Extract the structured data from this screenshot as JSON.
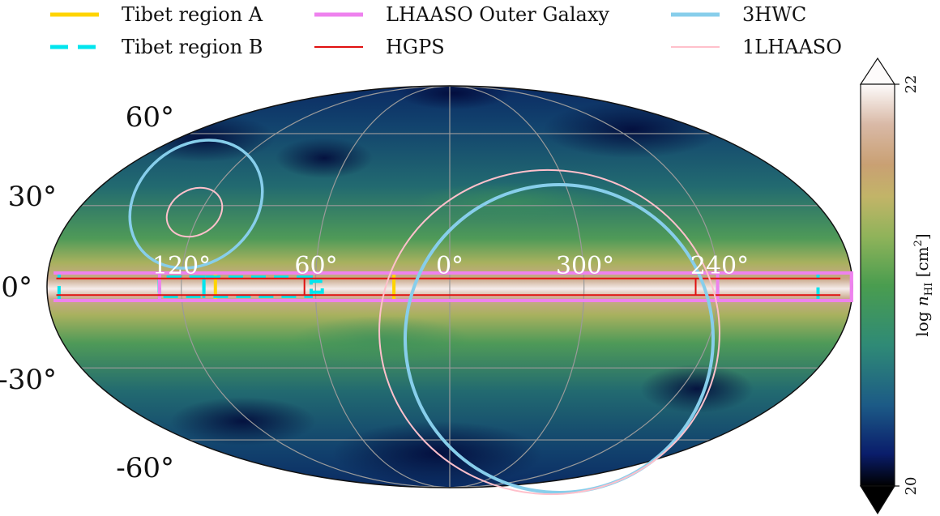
{
  "chart_data": {
    "type": "heatmap",
    "projection": "mollweide",
    "coordinate_system": "galactic",
    "legend": {
      "placement": "top",
      "entries": [
        {
          "id": "tibet_a",
          "label": "Tibet region A",
          "color": "#FFD400",
          "style": "solid"
        },
        {
          "id": "tibet_b",
          "label": "Tibet region B",
          "color": "#00E5EE",
          "style": "dashed"
        },
        {
          "id": "lhaaso_outer",
          "label": "LHAASO Outer Galaxy",
          "color": "#EE82EE",
          "style": "solid"
        },
        {
          "id": "hgps",
          "label": "HGPS",
          "color": "#E01010",
          "style": "solid"
        },
        {
          "id": "hwc3",
          "label": "3HWC",
          "color": "#87CEEB",
          "style": "solid"
        },
        {
          "id": "lhaaso1",
          "label": "1LHAASO",
          "color": "#FFC0CB",
          "style": "solid"
        }
      ]
    },
    "lat_ticks": [
      {
        "value": 60,
        "label": "60°"
      },
      {
        "value": 30,
        "label": "30°"
      },
      {
        "value": 0,
        "label": "0°"
      },
      {
        "value": -30,
        "label": "-30°"
      },
      {
        "value": -60,
        "label": "-60°"
      }
    ],
    "lon_ticks": [
      {
        "value": 120,
        "label": "120°"
      },
      {
        "value": 60,
        "label": "60°"
      },
      {
        "value": 0,
        "label": "0°"
      },
      {
        "value": 300,
        "label": "300°"
      },
      {
        "value": 240,
        "label": "240°"
      }
    ],
    "grid": true,
    "lon_range": [
      180,
      -180
    ],
    "lat_range": [
      -90,
      90
    ],
    "colorbar": {
      "label": "log n_HI [cm²]",
      "label_main": "log ",
      "label_n": "n",
      "label_sub": "HI",
      "label_unit": " [cm",
      "label_sup": "2",
      "label_end": "]",
      "min": 20,
      "max": 22,
      "tick_min": "20",
      "tick_max": "22",
      "extend": "both",
      "colormap": "gist_earth"
    },
    "regions": [
      {
        "id": "tibet_a",
        "l": [
          25,
          105
        ],
        "b": [
          -5,
          5
        ]
      },
      {
        "id": "tibet_b_1",
        "l": [
          57,
          62
        ],
        "b": [
          -2,
          2
        ]
      },
      {
        "id": "tibet_b_2",
        "l": [
          62,
          110
        ],
        "b": [
          -3.5,
          3.5
        ]
      },
      {
        "id": "tibet_b_3",
        "l": [
          110,
          130
        ],
        "b": [
          -3.5,
          3.5
        ]
      },
      {
        "id": "tibet_b_4",
        "l": [
          130,
          175
        ],
        "b": [
          -5,
          5
        ]
      },
      {
        "id": "tibet_b_5",
        "l": [
          195,
          240
        ],
        "b": [
          -5,
          5
        ]
      },
      {
        "id": "lhaaso_outer_1",
        "l": [
          130,
          180
        ],
        "b": [
          -5,
          5
        ]
      },
      {
        "id": "lhaaso_outer_2",
        "l": [
          180,
          240
        ],
        "b": [
          -5,
          5
        ]
      },
      {
        "id": "hgps",
        "l": [
          65,
          250
        ],
        "b": [
          -3,
          3
        ]
      }
    ]
  }
}
